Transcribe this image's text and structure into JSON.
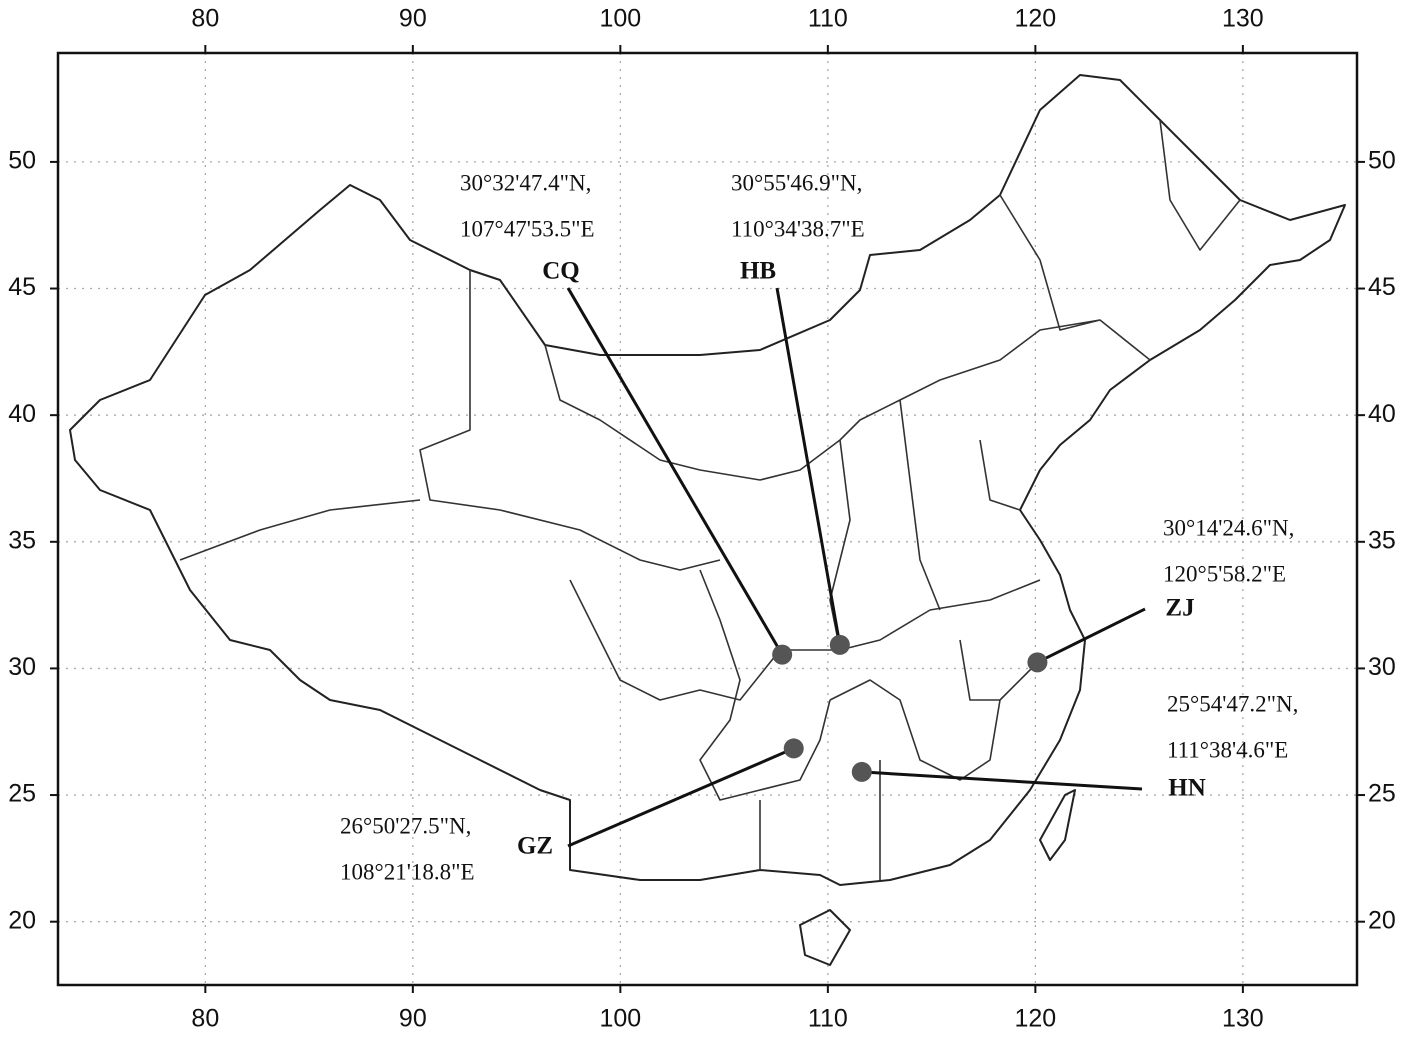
{
  "map": {
    "xlim": [
      72.9,
      135.5
    ],
    "ylim": [
      17.5,
      54.3
    ],
    "xticks": [
      80,
      90,
      100,
      110,
      120,
      130
    ],
    "yticks": [
      20,
      25,
      30,
      35,
      40,
      45,
      50
    ],
    "grid": true,
    "marker_color": "#555555",
    "sites": [
      {
        "code": "CQ",
        "coords": [
          "30°32'47.4\"N,",
          "107°47'53.5\"E"
        ]
      },
      {
        "code": "HB",
        "coords": [
          "30°55'46.9\"N,",
          "110°34'38.7\"E"
        ]
      },
      {
        "code": "ZJ",
        "coords": [
          "30°14'24.6\"N,",
          "120°5'58.2\"E"
        ]
      },
      {
        "code": "HN",
        "coords": [
          "25°54'47.2\"N,",
          "111°38'4.6\"E"
        ]
      },
      {
        "code": "GZ",
        "coords": [
          "26°50'27.5\"N,",
          "108°21'18.8\"E"
        ]
      }
    ]
  }
}
